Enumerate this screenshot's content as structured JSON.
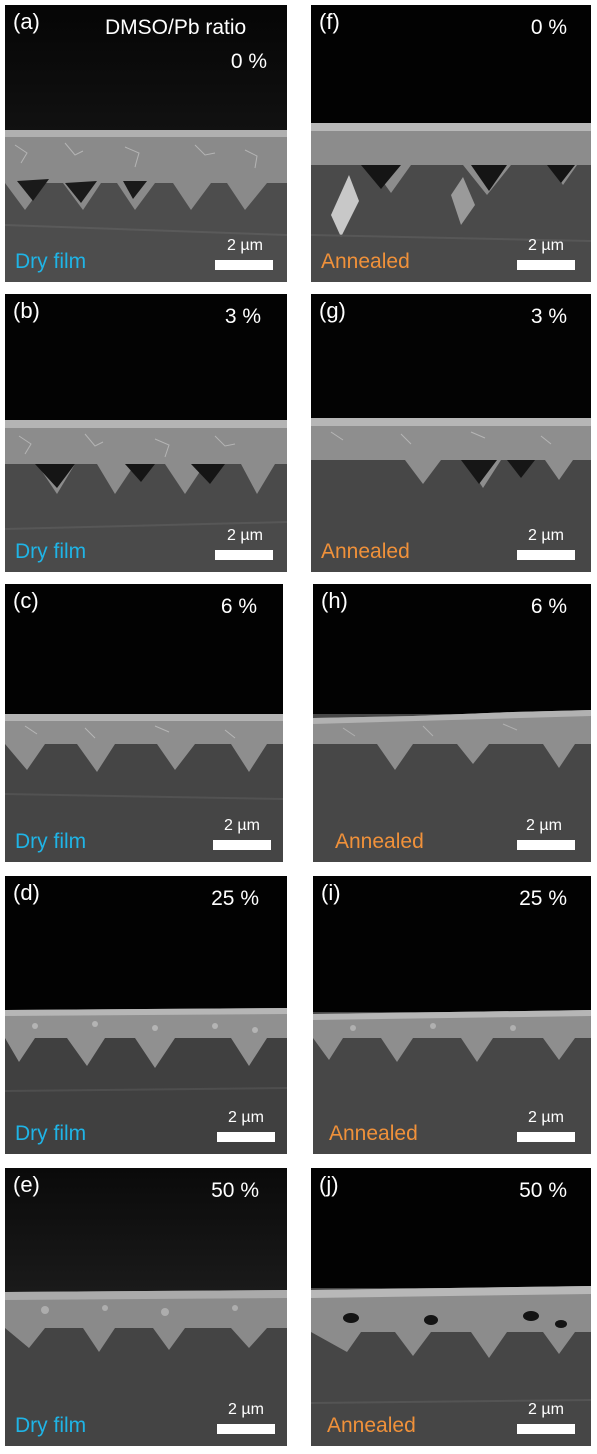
{
  "figure": {
    "header": "DMSO/Pb ratio",
    "scale_bar": "2 µm",
    "colors": {
      "dry": "#1fb4e6",
      "annealed": "#f0913a"
    },
    "left_column": [
      {
        "label": "(a)",
        "ratio": "0 %",
        "condition": "Dry film"
      },
      {
        "label": "(b)",
        "ratio": "3 %",
        "condition": "Dry film"
      },
      {
        "label": "(c)",
        "ratio": "6 %",
        "condition": "Dry film"
      },
      {
        "label": "(d)",
        "ratio": "25 %",
        "condition": "Dry film"
      },
      {
        "label": "(e)",
        "ratio": "50 %",
        "condition": "Dry film"
      }
    ],
    "right_column": [
      {
        "label": "(f)",
        "ratio": "0 %",
        "condition": "Annealed"
      },
      {
        "label": "(g)",
        "ratio": "3 %",
        "condition": "Annealed"
      },
      {
        "label": "(h)",
        "ratio": "6 %",
        "condition": "Annealed"
      },
      {
        "label": "(i)",
        "ratio": "25 %",
        "condition": "Annealed"
      },
      {
        "label": "(j)",
        "ratio": "50 %",
        "condition": "Annealed"
      }
    ]
  }
}
